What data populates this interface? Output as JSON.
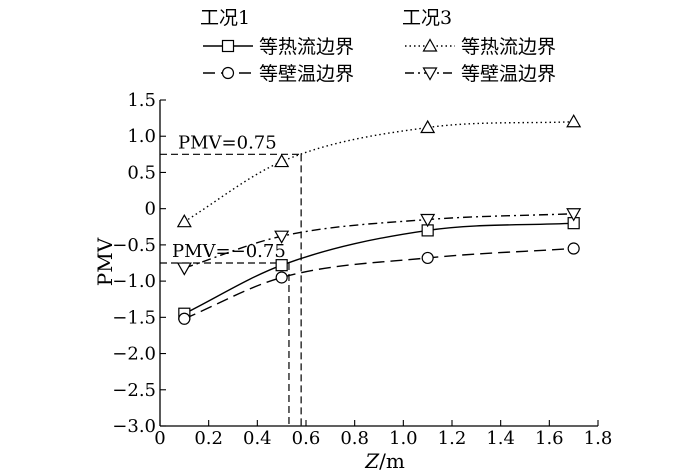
{
  "chart_data": {
    "type": "line",
    "xlabel_italic": "Z",
    "xlabel_unit": "/m",
    "ylabel": "PMV",
    "xlim": [
      0,
      1.8
    ],
    "ylim": [
      -3.0,
      1.5
    ],
    "x_ticks": [
      0,
      0.2,
      0.4,
      0.6,
      0.8,
      1.0,
      1.2,
      1.4,
      1.6,
      1.8
    ],
    "x_tick_labels": [
      "0",
      "0.2",
      "0.4",
      "0.6",
      "0.8",
      "1.0",
      "1.2",
      "1.4",
      "1.6",
      "1.8"
    ],
    "y_ticks": [
      -3.0,
      -2.5,
      -2.0,
      -1.5,
      -1.0,
      -0.5,
      0,
      0.5,
      1.0,
      1.5
    ],
    "y_tick_labels": [
      "−3.0",
      "−2.5",
      "−2.0",
      "−1.5",
      "−1.0",
      "−0.5",
      "0",
      "0.5",
      "1.0",
      "1.5"
    ],
    "grid": false,
    "legend_groups": [
      "工况1",
      "工况3"
    ],
    "series": [
      {
        "name": "等热流边界",
        "group": "工况1",
        "marker": "square",
        "line_style": "solid",
        "x": [
          0.1,
          0.5,
          1.1,
          1.7
        ],
        "y": [
          -1.45,
          -0.78,
          -0.3,
          -0.2
        ]
      },
      {
        "name": "等壁温边界",
        "group": "工况1",
        "marker": "circle",
        "line_style": "dashed",
        "x": [
          0.1,
          0.5,
          1.1,
          1.7
        ],
        "y": [
          -1.52,
          -0.95,
          -0.68,
          -0.55
        ]
      },
      {
        "name": "等热流边界",
        "group": "工况3",
        "marker": "triangle-up",
        "line_style": "dotted",
        "x": [
          0.1,
          0.5,
          1.1,
          1.7
        ],
        "y": [
          -0.18,
          0.65,
          1.12,
          1.2
        ]
      },
      {
        "name": "等壁温边界",
        "group": "工况3",
        "marker": "triangle-down",
        "line_style": "dashdot",
        "x": [
          0.1,
          0.5,
          1.1,
          1.7
        ],
        "y": [
          -0.82,
          -0.38,
          -0.15,
          -0.07
        ]
      }
    ],
    "annotations": [
      {
        "text": "PMV=0.75",
        "y": 0.75,
        "x_intersect": 0.58
      },
      {
        "text": "PMV=−0.75",
        "y": -0.75,
        "x_intersect": 0.53
      }
    ]
  }
}
